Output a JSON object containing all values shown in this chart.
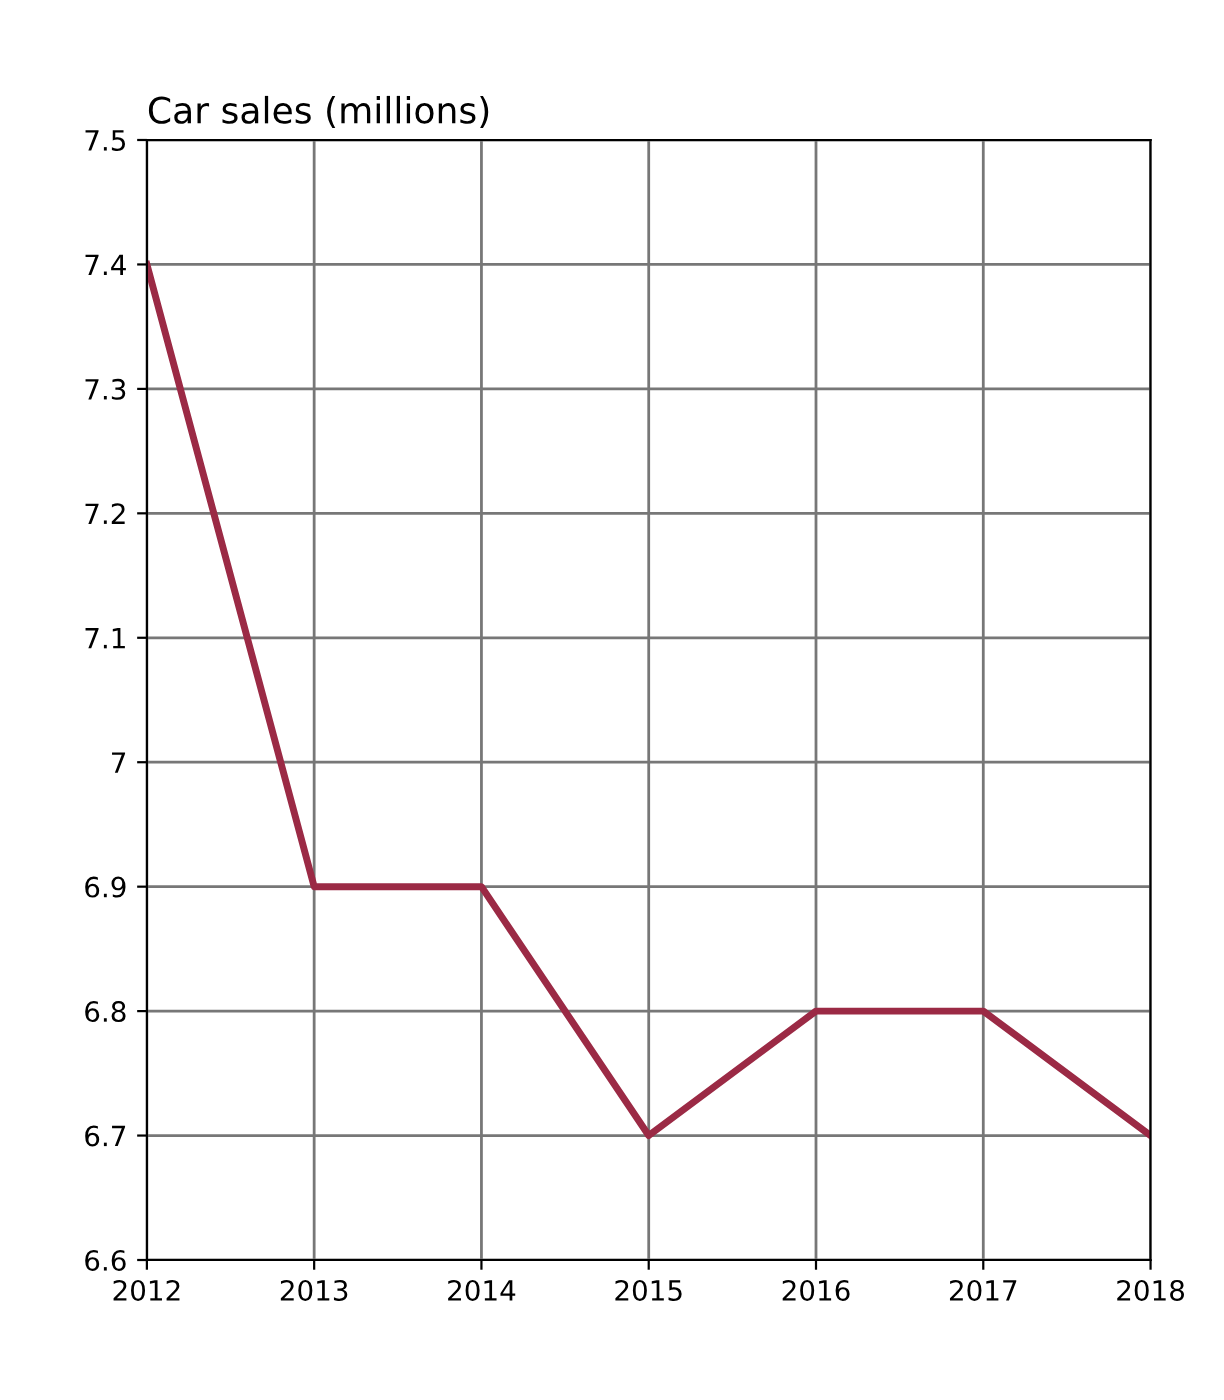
{
  "chart_data": {
    "type": "line",
    "title": "Car sales (millions)",
    "categories": [
      "2012",
      "2013",
      "2014",
      "2015",
      "2016",
      "2017",
      "2018"
    ],
    "series": [
      {
        "color": "#9b2a45",
        "values": [
          7.4,
          6.9,
          6.9,
          6.7,
          6.8,
          6.8,
          6.7
        ]
      }
    ],
    "ylim": [
      6.6,
      7.5
    ],
    "yticks": [
      6.6,
      6.7,
      6.8,
      6.9,
      7,
      7.1,
      7.2,
      7.3,
      7.4,
      7.5
    ],
    "grid": true,
    "marker": "none",
    "line_style": "solid"
  }
}
